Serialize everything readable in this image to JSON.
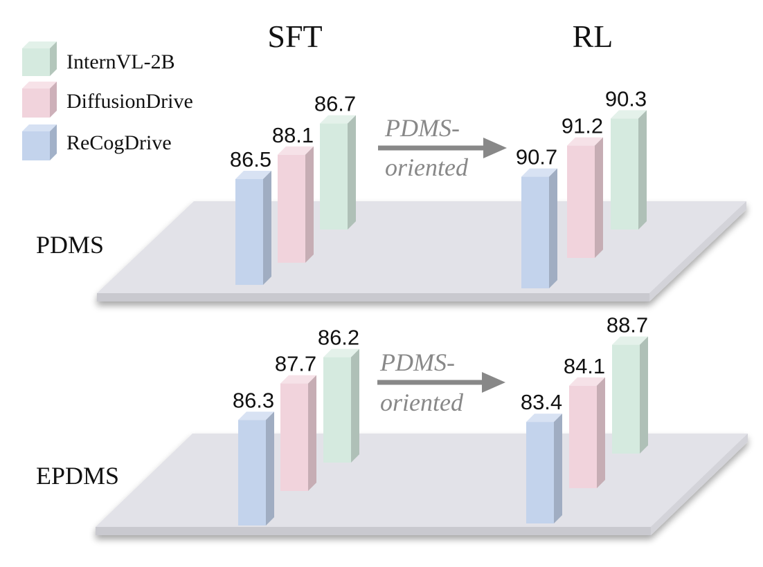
{
  "chart_data": {
    "type": "bar",
    "title": "",
    "group_labels": [
      "SFT",
      "RL"
    ],
    "arrow_text": [
      "PDMS-",
      "oriented"
    ],
    "series": [
      {
        "name": "InternVL-2B",
        "color": "#d5eadf"
      },
      {
        "name": "DiffusionDrive",
        "color": "#f1d3dc"
      },
      {
        "name": "ReCogDrive",
        "color": "#c3d3ec"
      }
    ],
    "rows": [
      {
        "metric": "PDMS",
        "SFT": {
          "ReCogDrive": 86.5,
          "DiffusionDrive": 88.1,
          "InternVL-2B": 86.7
        },
        "RL": {
          "ReCogDrive": 90.7,
          "DiffusionDrive": 91.2,
          "InternVL-2B": 90.3
        }
      },
      {
        "metric": "EPDMS",
        "SFT": {
          "ReCogDrive": 86.3,
          "DiffusionDrive": 87.7,
          "InternVL-2B": 86.2
        },
        "RL": {
          "ReCogDrive": 83.4,
          "DiffusionDrive": 84.1,
          "InternVL-2B": 88.7
        }
      }
    ]
  }
}
